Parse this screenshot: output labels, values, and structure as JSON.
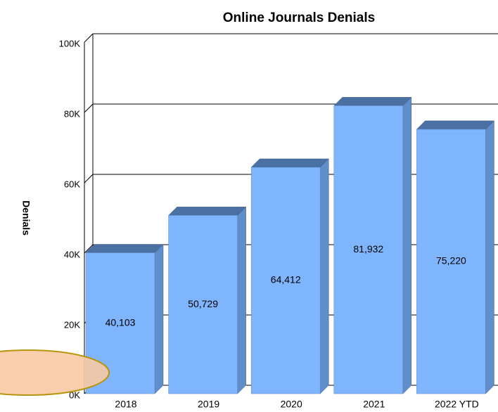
{
  "chart_data": {
    "type": "bar",
    "title": "Online Journals Denials",
    "ylabel": "Denials",
    "categories": [
      "2018",
      "2019",
      "2020",
      "2021",
      "2022 YTD"
    ],
    "values": [
      40103,
      50729,
      64412,
      81932,
      75220
    ],
    "value_labels": [
      "40,103",
      "50,729",
      "64,412",
      "81,932",
      "75,220"
    ],
    "color": "#7fb5fc",
    "ylim": [
      0,
      100000
    ],
    "yticks": [
      {
        "value": 0,
        "label": "0K"
      },
      {
        "value": 20000,
        "label": "20K"
      },
      {
        "value": 40000,
        "label": "40K"
      },
      {
        "value": 60000,
        "label": "60K"
      },
      {
        "value": 80000,
        "label": "80K"
      },
      {
        "value": 100000,
        "label": "100K"
      }
    ],
    "grid": true
  }
}
